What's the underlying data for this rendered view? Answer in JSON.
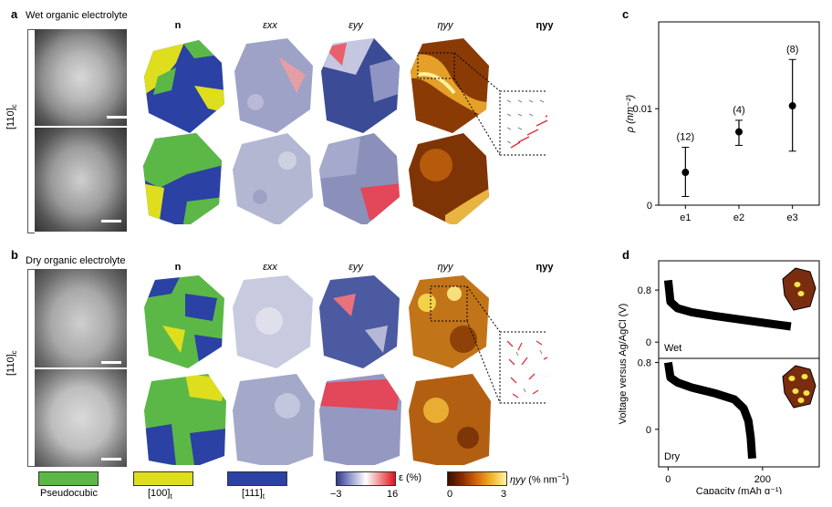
{
  "panel_a": {
    "letter": "a",
    "title": "Wet organic electrolyte",
    "axis_label": "[110]",
    "axis_sub": "c",
    "columns": [
      "n",
      "εxx",
      "εyy",
      "ηyy",
      "ηyy"
    ]
  },
  "panel_b": {
    "letter": "b",
    "title": "Dry organic electrolyte",
    "axis_label": "[110]",
    "axis_sub": "c",
    "columns": [
      "n",
      "εxx",
      "εyy",
      "ηyy",
      "ηyy"
    ]
  },
  "legend": {
    "phases": [
      {
        "label": "Pseudocubic",
        "color": "#5cb846"
      },
      {
        "label": "[100]",
        "sub": "t",
        "color": "#dede1e"
      },
      {
        "label": "[111]",
        "sub": "t",
        "color": "#2b41a4"
      }
    ],
    "strain": {
      "symbol": "ε (%)",
      "min": "−3",
      "max": "16"
    },
    "eta": {
      "symbol": "ηyy",
      "unit": "(% nm",
      "unit_sup": "−1",
      "unit_end": ")",
      "min": "0",
      "max": "3"
    }
  },
  "chart_data": [
    {
      "panel": "c",
      "type": "scatter",
      "title": "",
      "xlabel": "",
      "ylabel": "ρ (nm⁻²)",
      "categories": [
        "e1",
        "e2",
        "e3"
      ],
      "values": [
        0.0034,
        0.0076,
        0.0103
      ],
      "error_low": [
        0.0009,
        0.0062,
        0.0056
      ],
      "error_high": [
        0.006,
        0.0088,
        0.0151
      ],
      "annotations": [
        "(12)",
        "(4)",
        "(8)"
      ],
      "yticks": [
        "0",
        "0.01"
      ],
      "ylim": [
        0,
        0.019
      ]
    },
    {
      "panel": "d",
      "type": "line",
      "xlabel": "Capacity (mAh g⁻¹)",
      "ylabel": "Voltage versus Ag/AgCl (V)",
      "xticks": [
        "0",
        "200"
      ],
      "xlim": [
        -20,
        320
      ],
      "series": [
        {
          "name": "Wet",
          "yticks": [
            "0",
            "0.8"
          ],
          "ylim": [
            -0.25,
            1.25
          ],
          "x": [
            0,
            5,
            20,
            50,
            100,
            150,
            200,
            230,
            260
          ],
          "y": [
            0.95,
            0.62,
            0.52,
            0.46,
            0.4,
            0.35,
            0.3,
            0.27,
            0.24
          ]
        },
        {
          "name": "Dry",
          "yticks": [
            "0",
            "0.8"
          ],
          "ylim": [
            -0.45,
            0.85
          ],
          "x": [
            0,
            5,
            20,
            50,
            100,
            140,
            160,
            170,
            175,
            178
          ],
          "y": [
            0.8,
            0.62,
            0.56,
            0.5,
            0.43,
            0.36,
            0.25,
            0.1,
            -0.1,
            -0.35
          ]
        }
      ]
    }
  ]
}
